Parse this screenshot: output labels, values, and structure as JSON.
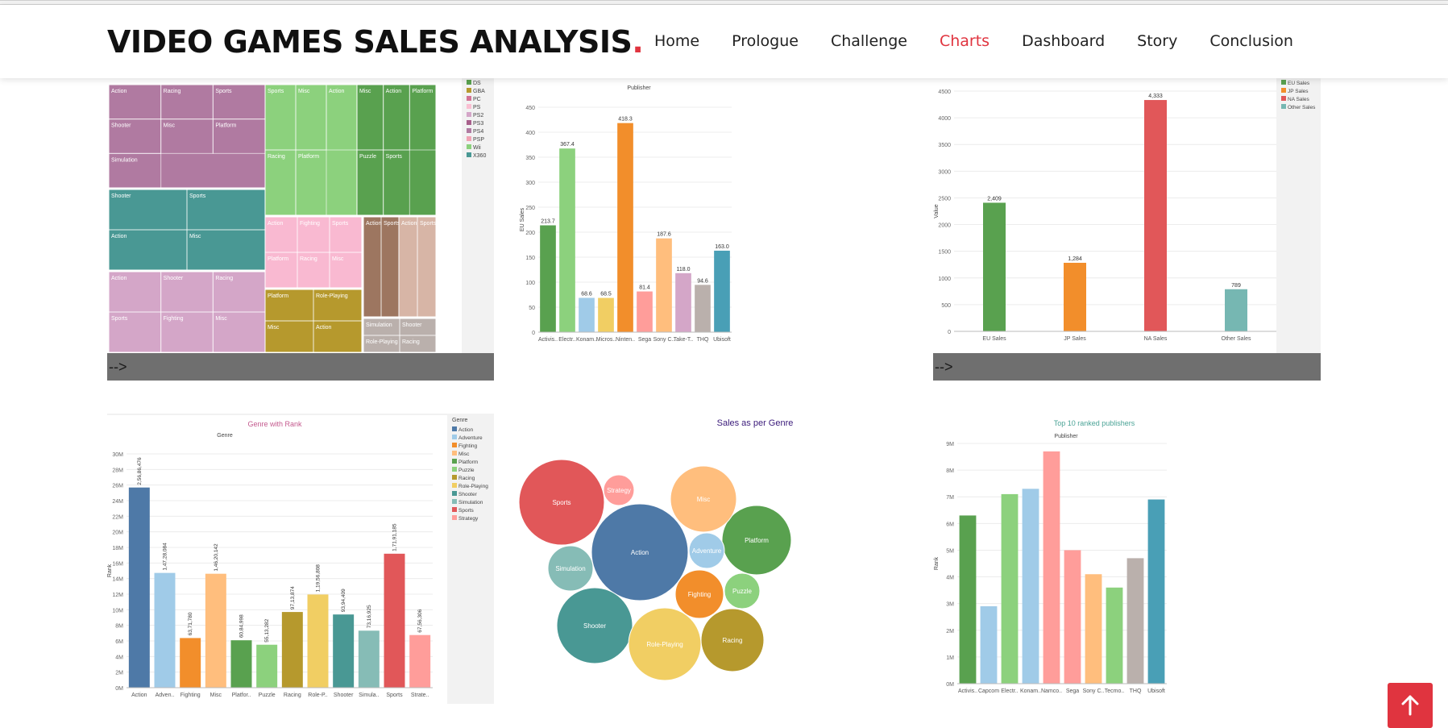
{
  "header": {
    "logo_text": "VIDEO GAMES SALES ANALYSIS",
    "logo_dot": ".",
    "nav": [
      {
        "label": "Home",
        "active": false
      },
      {
        "label": "Prologue",
        "active": false
      },
      {
        "label": "Challenge",
        "active": false
      },
      {
        "label": "Charts",
        "active": true
      },
      {
        "label": "Dashboard",
        "active": false
      },
      {
        "label": "Story",
        "active": false
      },
      {
        "label": "Conclusion",
        "active": false
      }
    ]
  },
  "arrow_text": "-->",
  "colors": {
    "accent": "#e0343f"
  },
  "treemap": {
    "legend": [
      "DS",
      "GBA",
      "PC",
      "PS",
      "PS2",
      "PS3",
      "PS4",
      "PSP",
      "Wii",
      "X360"
    ],
    "legend_colors": [
      "#59a14f",
      "#b6992d",
      "#d37295",
      "#fabfd2",
      "#d4a6c8",
      "#a8608c",
      "#b07aa1",
      "#f1a3b4",
      "#8cd17d",
      "#499894"
    ],
    "blocks": [
      {
        "platform": "PS2",
        "color": "#b07aa1",
        "labels": [
          "Action",
          "Racing",
          "Sports",
          "Shooter",
          "Misc",
          "Platform",
          "Simulation"
        ]
      },
      {
        "platform": "Wii",
        "color": "#8cd17d",
        "labels": [
          "Sports",
          "Misc",
          "Action",
          "Racing",
          "Platform"
        ]
      },
      {
        "platform": "DS",
        "color": "#59a14f",
        "labels": [
          "Misc",
          "Action",
          "Platform",
          "Puzzle",
          "Sports"
        ]
      },
      {
        "platform": "X360",
        "color": "#499894",
        "labels": [
          "Shooter",
          "Sports",
          "Action",
          "Misc"
        ]
      },
      {
        "platform": "PSP",
        "color": "#f9b9d1",
        "labels": [
          "Action",
          "Fighting",
          "Sports",
          "Platform",
          "Racing",
          "Misc"
        ]
      },
      {
        "platform": "PS",
        "color": "#9d7660",
        "labels": [
          "Action",
          "Sports"
        ]
      },
      {
        "platform": "PC",
        "color": "#d7b5a6",
        "labels": [
          "Action",
          "Sports"
        ]
      },
      {
        "platform": "PS3",
        "color": "#d4a6c8",
        "labels": [
          "Action",
          "Shooter",
          "Racing",
          "Sports",
          "Fighting",
          "Misc"
        ]
      },
      {
        "platform": "GBA",
        "color": "#b6992d",
        "labels": [
          "Platform",
          "Role-Playing",
          "Misc",
          "Action"
        ]
      },
      {
        "platform": "PS4",
        "color": "#bab0ac",
        "labels": [
          "Simulation",
          "Shooter",
          "Role-Playing",
          "Racing"
        ]
      }
    ]
  },
  "chart_data": [
    {
      "type": "bar",
      "title": "Publisher",
      "ylabel": "EU Sales",
      "categories": [
        "Activis..",
        "Electr..",
        "Konam..",
        "Micros..",
        "Ninten..",
        "Sega",
        "Sony C..",
        "Take-T..",
        "THQ",
        "Ubisoft"
      ],
      "values": [
        213.7,
        367.4,
        68.6,
        68.5,
        418.3,
        81.4,
        187.6,
        118.0,
        94.6,
        163.0
      ],
      "value_labels": [
        "213.7",
        "367.4",
        "68.6",
        "68.5",
        "418.3",
        "81.4",
        "187.6",
        "118.0",
        "94.6",
        "163.0"
      ],
      "colors": [
        "#59a14f",
        "#8cd17d",
        "#a0cbe8",
        "#f1ce63",
        "#f28e2b",
        "#ff9d9a",
        "#ffbe7d",
        "#d4a6c8",
        "#bab0ac",
        "#499fb6"
      ],
      "ylim": [
        0,
        450
      ],
      "yticks": [
        0,
        50,
        100,
        150,
        200,
        250,
        300,
        350,
        400,
        450
      ]
    },
    {
      "type": "bar",
      "ylabel": "Value",
      "categories": [
        "EU Sales",
        "JP Sales",
        "NA Sales",
        "Other Sales"
      ],
      "values": [
        2409,
        1284,
        4333,
        789
      ],
      "value_labels": [
        "2,409",
        "1,284",
        "4,333",
        "789"
      ],
      "colors": [
        "#59a14f",
        "#f28e2b",
        "#e15759",
        "#76b7b2"
      ],
      "legend": [
        "EU Sales",
        "JP Sales",
        "NA Sales",
        "Other Sales"
      ],
      "ylim": [
        0,
        4500
      ],
      "yticks": [
        0,
        500,
        1000,
        1500,
        2000,
        2500,
        3000,
        3500,
        4000,
        4500
      ]
    },
    {
      "type": "bar",
      "title": "Genre with Rank",
      "subtitle": "Genre",
      "ylabel": "Rank",
      "legend_title": "Genre",
      "categories": [
        "Action",
        "Adven..",
        "Fighting",
        "Misc",
        "Platfor..",
        "Puzzle",
        "Racing",
        "Role-P..",
        "Shooter",
        "Simula..",
        "Sports",
        "Strate.."
      ],
      "legend": [
        "Action",
        "Adventure",
        "Fighting",
        "Misc",
        "Platform",
        "Puzzle",
        "Racing",
        "Role-Playing",
        "Shooter",
        "Simulation",
        "Sports",
        "Strategy"
      ],
      "values": [
        25686476,
        14728084,
        6371780,
        14620142,
        6084998,
        5513282,
        9713874,
        11956808,
        9394409,
        7316925,
        17191185,
        6756306
      ],
      "value_labels": [
        "2,56,86,476",
        "1,47,28,084",
        "63,71,780",
        "1,46,20,142",
        "60,84,998",
        "55,13,282",
        "97,13,874",
        "1,19,56,808",
        "93,94,409",
        "73,16,925",
        "1,71,91,185",
        "67,56,306"
      ],
      "colors": [
        "#4e79a7",
        "#a0cbe8",
        "#f28e2b",
        "#ffbe7d",
        "#59a14f",
        "#8cd17d",
        "#b6992d",
        "#f1ce63",
        "#499894",
        "#86bcb6",
        "#e15759",
        "#ff9d9a"
      ],
      "ylim": [
        0,
        30000000
      ],
      "yticks": [
        "0M",
        "2M",
        "4M",
        "6M",
        "8M",
        "10M",
        "12M",
        "14M",
        "16M",
        "18M",
        "20M",
        "22M",
        "24M",
        "26M",
        "28M",
        "30M"
      ]
    },
    {
      "type": "bubble",
      "title": "Sales as per Genre",
      "bubbles": [
        {
          "label": "Action",
          "color": "#4e79a7"
        },
        {
          "label": "Sports",
          "color": "#e15759"
        },
        {
          "label": "Shooter",
          "color": "#499894"
        },
        {
          "label": "Role-Playing",
          "color": "#f1ce63"
        },
        {
          "label": "Platform",
          "color": "#59a14f"
        },
        {
          "label": "Misc",
          "color": "#ffbe7d"
        },
        {
          "label": "Racing",
          "color": "#b6992d"
        },
        {
          "label": "Fighting",
          "color": "#f28e2b"
        },
        {
          "label": "Simulation",
          "color": "#86bcb6"
        },
        {
          "label": "Adventure",
          "color": "#a0cbe8"
        },
        {
          "label": "Puzzle",
          "color": "#8cd17d"
        },
        {
          "label": "Strategy",
          "color": "#ff9d9a"
        }
      ]
    },
    {
      "type": "bar",
      "title": "Top 10 ranked publishers",
      "subtitle": "Publisher",
      "ylabel": "Rank",
      "categories": [
        "Activis..",
        "Capcom",
        "Electr..",
        "Konam..",
        "Namco..",
        "Sega",
        "Sony C..",
        "Tecmo..",
        "THQ",
        "Ubisoft"
      ],
      "values": [
        6.3,
        2.9,
        7.1,
        7.3,
        8.7,
        5.0,
        4.1,
        3.6,
        4.7,
        6.9
      ],
      "colors": [
        "#59a14f",
        "#a0cbe8",
        "#8cd17d",
        "#a0cbe8",
        "#ff9d9a",
        "#ff9d9a",
        "#ffbe7d",
        "#8cd17d",
        "#bab0ac",
        "#499fb6"
      ],
      "ylim": [
        0,
        9
      ],
      "yticks": [
        "0M",
        "1M",
        "2M",
        "3M",
        "4M",
        "5M",
        "6M",
        "7M",
        "8M",
        "9M"
      ]
    }
  ]
}
